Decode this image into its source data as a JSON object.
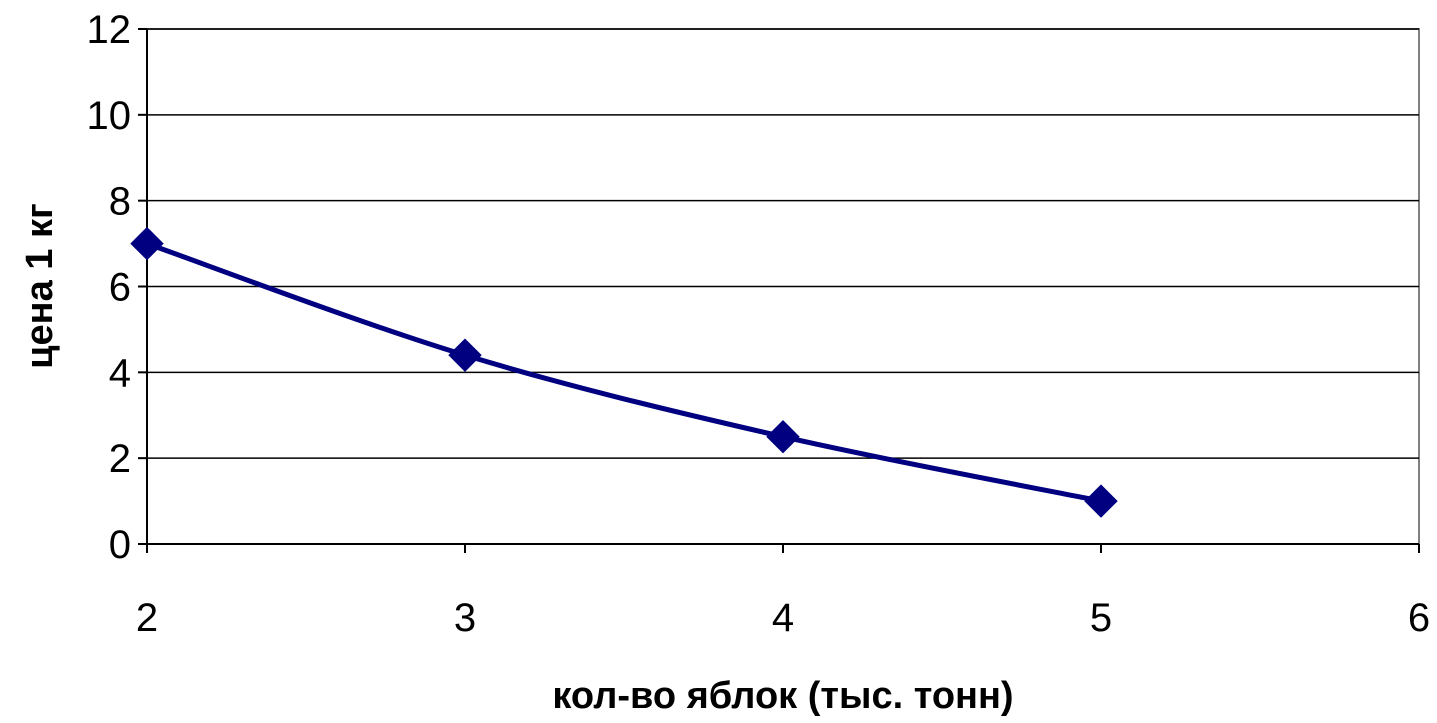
{
  "chart_data": {
    "type": "line",
    "title": "",
    "xlabel": "кол-во яблок (тыс. тонн)",
    "ylabel": "цена 1 кг",
    "xlim": [
      2,
      6
    ],
    "ylim": [
      0,
      12
    ],
    "x_ticks": [
      2,
      3,
      4,
      5,
      6
    ],
    "y_ticks": [
      0,
      2,
      4,
      6,
      8,
      10,
      12
    ],
    "grid": {
      "horizontal": true,
      "vertical": false
    },
    "legend": "none",
    "series": [
      {
        "x": [
          2,
          3,
          4,
          5
        ],
        "values": [
          7.0,
          4.4,
          2.5,
          1.0
        ],
        "color": "#000080",
        "marker": "diamond",
        "smooth": true
      }
    ]
  }
}
